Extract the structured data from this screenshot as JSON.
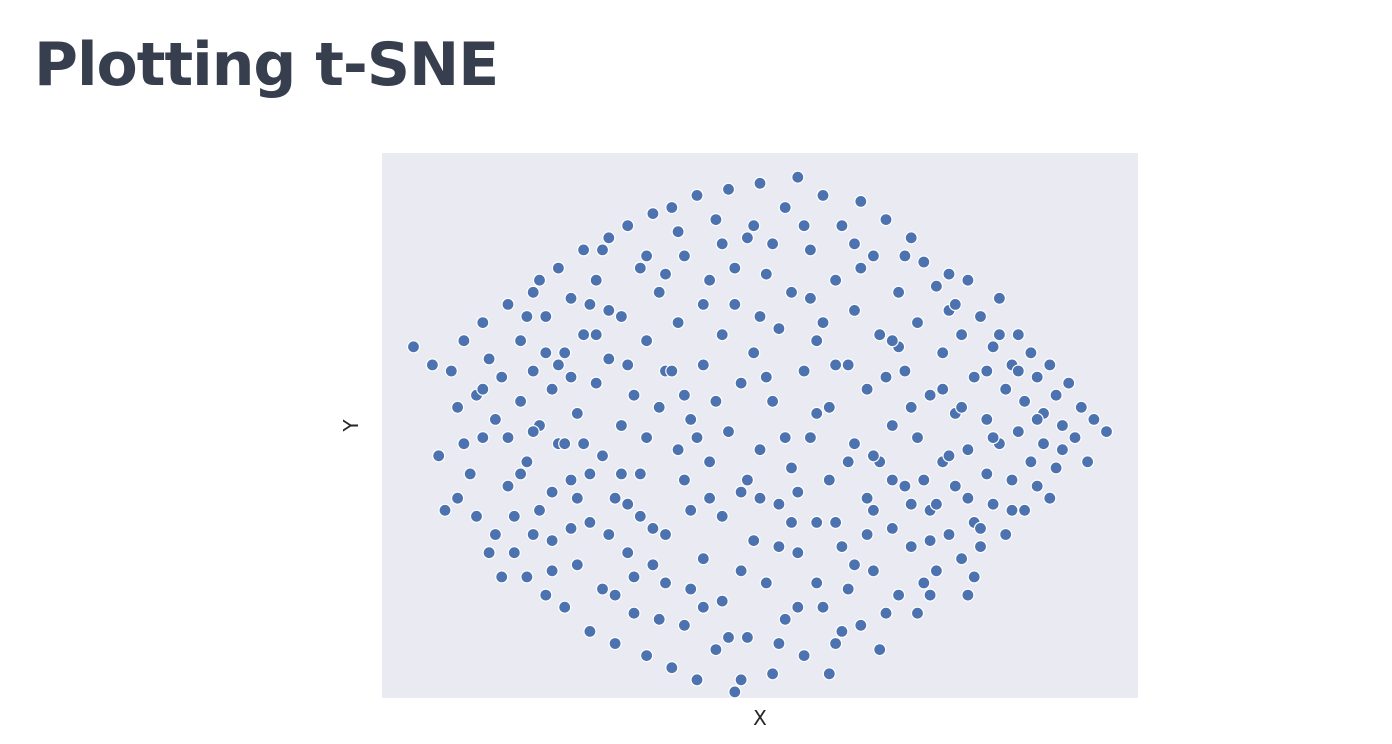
{
  "slide": {
    "title": "Plotting t-SNE"
  },
  "chart_data": {
    "type": "scatter",
    "xlabel": "X",
    "ylabel": "Y",
    "xlim": [
      -60,
      60
    ],
    "ylim": [
      -45,
      45
    ],
    "grid": false,
    "legend": "none",
    "background_color": "#eaeaf2",
    "marker_color": "#4c72b0",
    "marker_edge_color": "#ffffff",
    "series": [
      {
        "description_of_shape": "single blob of ~1500 points; approximate representative sample",
        "points": [
          [
            -55,
            13
          ],
          [
            -52,
            10
          ],
          [
            -51,
            -5
          ],
          [
            -50,
            -14
          ],
          [
            -49,
            9
          ],
          [
            -48,
            3
          ],
          [
            -48,
            -12
          ],
          [
            -47,
            14
          ],
          [
            -46,
            -8
          ],
          [
            -45,
            5
          ],
          [
            -45,
            -15
          ],
          [
            -44,
            17
          ],
          [
            -44,
            -2
          ],
          [
            -43,
            11
          ],
          [
            -42,
            -18
          ],
          [
            -42,
            1
          ],
          [
            -41,
            8
          ],
          [
            -40,
            -10
          ],
          [
            -40,
            20
          ],
          [
            -39,
            -21
          ],
          [
            -38,
            4
          ],
          [
            -38,
            14
          ],
          [
            -37,
            -6
          ],
          [
            -37,
            -25
          ],
          [
            -36,
            22
          ],
          [
            -36,
            9
          ],
          [
            -35,
            -14
          ],
          [
            -35,
            0
          ],
          [
            -34,
            18
          ],
          [
            -34,
            -28
          ],
          [
            -33,
            6
          ],
          [
            -33,
            -19
          ],
          [
            -32,
            26
          ],
          [
            -32,
            -3
          ],
          [
            -31,
            12
          ],
          [
            -31,
            -30
          ],
          [
            -30,
            -9
          ],
          [
            -30,
            21
          ],
          [
            -29,
            2
          ],
          [
            -29,
            -23
          ],
          [
            -28,
            29
          ],
          [
            -28,
            15
          ],
          [
            -27,
            -16
          ],
          [
            -27,
            -34
          ],
          [
            -26,
            7
          ],
          [
            -26,
            24
          ],
          [
            -25,
            -5
          ],
          [
            -25,
            -27
          ],
          [
            -24,
            31
          ],
          [
            -24,
            11
          ],
          [
            -23,
            -12
          ],
          [
            -23,
            -36
          ],
          [
            -22,
            18
          ],
          [
            -22,
            0
          ],
          [
            -21,
            -21
          ],
          [
            -21,
            33
          ],
          [
            -20,
            5
          ],
          [
            -20,
            -31
          ],
          [
            -19,
            26
          ],
          [
            -19,
            -8
          ],
          [
            -18,
            14
          ],
          [
            -18,
            -38
          ],
          [
            -17,
            35
          ],
          [
            -17,
            -17
          ],
          [
            -16,
            3
          ],
          [
            -16,
            22
          ],
          [
            -15,
            -26
          ],
          [
            -15,
            9
          ],
          [
            -14,
            36
          ],
          [
            -14,
            -40
          ],
          [
            -13,
            -4
          ],
          [
            -13,
            17
          ],
          [
            -12,
            -33
          ],
          [
            -12,
            28
          ],
          [
            -11,
            1
          ],
          [
            -11,
            -14
          ],
          [
            -10,
            38
          ],
          [
            -10,
            -42
          ],
          [
            -9,
            10
          ],
          [
            -9,
            -22
          ],
          [
            -8,
            24
          ],
          [
            -8,
            -6
          ],
          [
            -7,
            -37
          ],
          [
            -7,
            34
          ],
          [
            -6,
            15
          ],
          [
            -6,
            -29
          ],
          [
            -5,
            -1
          ],
          [
            -5,
            39
          ],
          [
            -4,
            -44
          ],
          [
            -4,
            20
          ],
          [
            -3,
            -11
          ],
          [
            -3,
            7
          ],
          [
            -2,
            31
          ],
          [
            -2,
            -35
          ],
          [
            -1,
            -19
          ],
          [
            -1,
            12
          ],
          [
            0,
            40
          ],
          [
            0,
            -4
          ],
          [
            1,
            -26
          ],
          [
            1,
            25
          ],
          [
            2,
            -41
          ],
          [
            2,
            4
          ],
          [
            3,
            16
          ],
          [
            3,
            -13
          ],
          [
            4,
            36
          ],
          [
            4,
            -32
          ],
          [
            5,
            -7
          ],
          [
            5,
            22
          ],
          [
            6,
            41
          ],
          [
            6,
            -21
          ],
          [
            7,
            9
          ],
          [
            7,
            -38
          ],
          [
            8,
            29
          ],
          [
            8,
            -2
          ],
          [
            9,
            -16
          ],
          [
            9,
            14
          ],
          [
            10,
            -30
          ],
          [
            10,
            38
          ],
          [
            11,
            -9
          ],
          [
            11,
            3
          ],
          [
            12,
            24
          ],
          [
            12,
            -36
          ],
          [
            13,
            -20
          ],
          [
            13,
            33
          ],
          [
            14,
            10
          ],
          [
            14,
            -27
          ],
          [
            15,
            -3
          ],
          [
            15,
            19
          ],
          [
            16,
            37
          ],
          [
            16,
            -33
          ],
          [
            17,
            -12
          ],
          [
            17,
            6
          ],
          [
            18,
            28
          ],
          [
            18,
            -24
          ],
          [
            19,
            -6
          ],
          [
            19,
            15
          ],
          [
            20,
            34
          ],
          [
            20,
            -31
          ],
          [
            21,
            0
          ],
          [
            21,
            -17
          ],
          [
            22,
            22
          ],
          [
            22,
            -28
          ],
          [
            23,
            9
          ],
          [
            23,
            -10
          ],
          [
            24,
            31
          ],
          [
            24,
            -20
          ],
          [
            25,
            -2
          ],
          [
            25,
            17
          ],
          [
            26,
            -26
          ],
          [
            26,
            27
          ],
          [
            27,
            5
          ],
          [
            27,
            -14
          ],
          [
            28,
            23
          ],
          [
            28,
            -24
          ],
          [
            29,
            -6
          ],
          [
            29,
            12
          ],
          [
            30,
            19
          ],
          [
            30,
            -18
          ],
          [
            31,
            2
          ],
          [
            31,
            -10
          ],
          [
            32,
            15
          ],
          [
            32,
            -22
          ],
          [
            33,
            24
          ],
          [
            33,
            -4
          ],
          [
            34,
            8
          ],
          [
            34,
            -16
          ],
          [
            35,
            -20
          ],
          [
            35,
            18
          ],
          [
            36,
            1
          ],
          [
            36,
            -8
          ],
          [
            37,
            13
          ],
          [
            37,
            -13
          ],
          [
            38,
            21
          ],
          [
            38,
            -3
          ],
          [
            39,
            6
          ],
          [
            39,
            -18
          ],
          [
            40,
            10
          ],
          [
            40,
            -9
          ],
          [
            41,
            -1
          ],
          [
            41,
            15
          ],
          [
            42,
            -14
          ],
          [
            42,
            4
          ],
          [
            43,
            12
          ],
          [
            43,
            -6
          ],
          [
            44,
            -10
          ],
          [
            44,
            8
          ],
          [
            45,
            2
          ],
          [
            45,
            -3
          ],
          [
            46,
            -12
          ],
          [
            46,
            10
          ],
          [
            47,
            -7
          ],
          [
            47,
            5
          ],
          [
            48,
            0
          ],
          [
            48,
            -4
          ],
          [
            49,
            7
          ],
          [
            50,
            -2
          ],
          [
            51,
            3
          ],
          [
            52,
            -6
          ],
          [
            53,
            1
          ],
          [
            55,
            -1
          ],
          [
            -47,
            -3
          ],
          [
            -43,
            -21
          ],
          [
            -39,
            -15
          ],
          [
            -36,
            -1
          ],
          [
            -33,
            -11
          ],
          [
            -30,
            8
          ],
          [
            -27,
            -8
          ],
          [
            -24,
            -18
          ],
          [
            -21,
            -13
          ],
          [
            -18,
            -2
          ],
          [
            -15,
            -18
          ],
          [
            -12,
            -9
          ],
          [
            -9,
            -30
          ],
          [
            -6,
            -15
          ],
          [
            -3,
            -24
          ],
          [
            0,
            -12
          ],
          [
            3,
            -20
          ],
          [
            6,
            -11
          ],
          [
            9,
            -26
          ],
          [
            12,
            -16
          ],
          [
            15,
            -23
          ],
          [
            18,
            -14
          ],
          [
            21,
            -9
          ],
          [
            24,
            -13
          ],
          [
            27,
            -19
          ],
          [
            30,
            -5
          ],
          [
            33,
            -12
          ],
          [
            -40,
            -2
          ],
          [
            -36,
            -18
          ],
          [
            -32,
            10
          ],
          [
            -28,
            -3
          ],
          [
            -24,
            19
          ],
          [
            -20,
            -25
          ],
          [
            -16,
            -32
          ],
          [
            -12,
            5
          ],
          [
            -8,
            -12
          ],
          [
            -4,
            26
          ],
          [
            0,
            18
          ],
          [
            4,
            -2
          ],
          [
            8,
            21
          ],
          [
            12,
            10
          ],
          [
            16,
            26
          ],
          [
            20,
            8
          ],
          [
            24,
            3
          ],
          [
            28,
            -13
          ],
          [
            32,
            3
          ],
          [
            36,
            9
          ],
          [
            40,
            -14
          ],
          [
            44,
            1
          ],
          [
            -44,
            6
          ],
          [
            -38,
            -8
          ],
          [
            -34,
            12
          ],
          [
            -30,
            -17
          ],
          [
            -26,
            15
          ],
          [
            -22,
            -8
          ],
          [
            -18,
            28
          ],
          [
            -14,
            9
          ],
          [
            -10,
            -2
          ],
          [
            -6,
            30
          ],
          [
            -2,
            -9
          ],
          [
            2,
            30
          ],
          [
            6,
            -30
          ],
          [
            10,
            17
          ],
          [
            14,
            -6
          ],
          [
            18,
            -5
          ],
          [
            22,
            13
          ],
          [
            26,
            -9
          ],
          [
            30,
            25
          ],
          [
            34,
            -25
          ],
          [
            38,
            15
          ],
          [
            -41,
            -25
          ],
          [
            -37,
            18
          ],
          [
            -33,
            -24
          ],
          [
            -29,
            -12
          ],
          [
            -25,
            29
          ],
          [
            -21,
            10
          ],
          [
            -17,
            -23
          ],
          [
            -13,
            32
          ],
          [
            -9,
            20
          ],
          [
            -5,
            -35
          ],
          [
            -1,
            33
          ],
          [
            3,
            -36
          ],
          [
            7,
            33
          ],
          [
            11,
            -41
          ],
          [
            15,
            30
          ],
          [
            19,
            -37
          ],
          [
            23,
            28
          ],
          [
            27,
            -28
          ],
          [
            31,
            20
          ],
          [
            35,
            -17
          ],
          [
            -35,
            24
          ],
          [
            -31,
            -3
          ],
          [
            -27,
            20
          ],
          [
            -23,
            -28
          ],
          [
            -19,
            -15
          ],
          [
            -15,
            25
          ],
          [
            -11,
            -27
          ],
          [
            -7,
            4
          ],
          [
            -3,
            -42
          ],
          [
            1,
            8
          ],
          [
            5,
            -16
          ],
          [
            9,
            2
          ],
          [
            13,
            -34
          ],
          [
            17,
            -18
          ],
          [
            21,
            14
          ],
          [
            25,
            -31
          ],
          [
            29,
            6
          ],
          [
            33,
            -28
          ],
          [
            37,
            -2
          ],
          [
            41,
            9
          ]
        ]
      }
    ]
  }
}
